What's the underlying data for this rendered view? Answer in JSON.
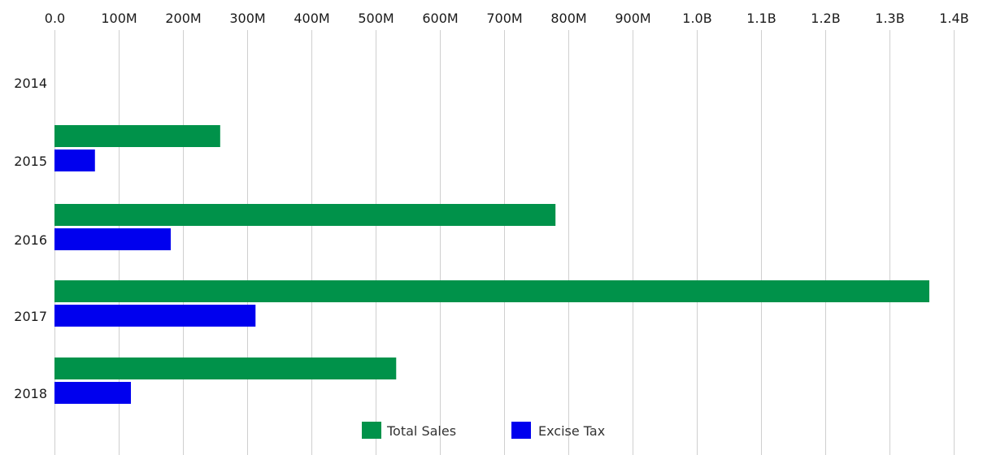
{
  "chart_data": {
    "type": "bar",
    "orientation": "horizontal",
    "categories": [
      "2014",
      "2015",
      "2016",
      "2017",
      "2018"
    ],
    "series": [
      {
        "name": "Total Sales",
        "color": "#00924a",
        "values": [
          0,
          258000000,
          780000000,
          1362000000,
          532000000
        ]
      },
      {
        "name": "Excise Tax",
        "color": "#0000ee",
        "values": [
          0,
          63000000,
          181000000,
          313000000,
          119000000
        ]
      }
    ],
    "x_axis": {
      "position": "top",
      "range": [
        0,
        1400000000
      ],
      "tick_labels": [
        "0.0",
        "100M",
        "200M",
        "300M",
        "400M",
        "500M",
        "600M",
        "700M",
        "800M",
        "900M",
        "1.0B",
        "1.1B",
        "1.2B",
        "1.3B",
        "1.4B"
      ]
    },
    "grid": true,
    "legend_position": "bottom"
  }
}
